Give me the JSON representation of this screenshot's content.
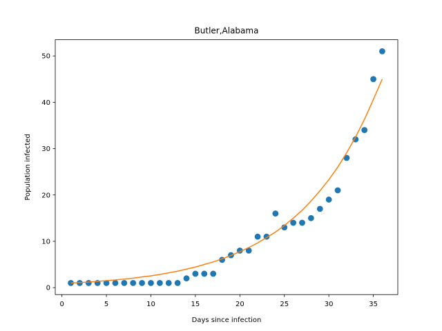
{
  "chart_data": {
    "type": "scatter",
    "title": "Butler,Alabama",
    "xlabel": "Days since infection",
    "ylabel": "Population infected",
    "xlim": [
      -0.75,
      37.75
    ],
    "ylim": [
      -1.5,
      53.5
    ],
    "xticks": [
      0,
      5,
      10,
      15,
      20,
      25,
      30,
      35
    ],
    "yticks": [
      0,
      10,
      20,
      30,
      40,
      50
    ],
    "grid": false,
    "legend": "none",
    "series": [
      {
        "kind": "scatter",
        "color": "#1f77b4",
        "x": [
          1,
          2,
          3,
          4,
          5,
          6,
          7,
          8,
          9,
          10,
          11,
          12,
          13,
          14,
          15,
          16,
          17,
          18,
          19,
          20,
          21,
          22,
          23,
          24,
          25,
          26,
          27,
          28,
          29,
          30,
          31,
          32,
          33,
          34,
          35,
          36
        ],
        "y": [
          1,
          1,
          1,
          1,
          1,
          1,
          1,
          1,
          1,
          1,
          1,
          1,
          1,
          2,
          3,
          3,
          3,
          6,
          7,
          8,
          8,
          11,
          11,
          16,
          13,
          14,
          14,
          15,
          17,
          19,
          21,
          28,
          32,
          34,
          45,
          51
        ]
      },
      {
        "kind": "line",
        "color": "#ff7f0e",
        "x": [
          1,
          2,
          3,
          4,
          5,
          6,
          7,
          8,
          9,
          10,
          11,
          12,
          13,
          14,
          15,
          16,
          17,
          18,
          19,
          20,
          21,
          22,
          23,
          24,
          25,
          26,
          27,
          28,
          29,
          30,
          31,
          32,
          33,
          34,
          35,
          36
        ],
        "y": [
          1.0,
          1.1,
          1.2,
          1.35,
          1.5,
          1.65,
          1.85,
          2.05,
          2.3,
          2.55,
          2.85,
          3.2,
          3.55,
          4.0,
          4.45,
          5.0,
          5.55,
          6.2,
          6.95,
          7.75,
          8.65,
          9.65,
          10.8,
          12.0,
          13.4,
          15.0,
          16.7,
          18.7,
          20.9,
          23.3,
          26.0,
          29.1,
          32.5,
          36.3,
          40.6,
          45.0
        ]
      }
    ]
  }
}
